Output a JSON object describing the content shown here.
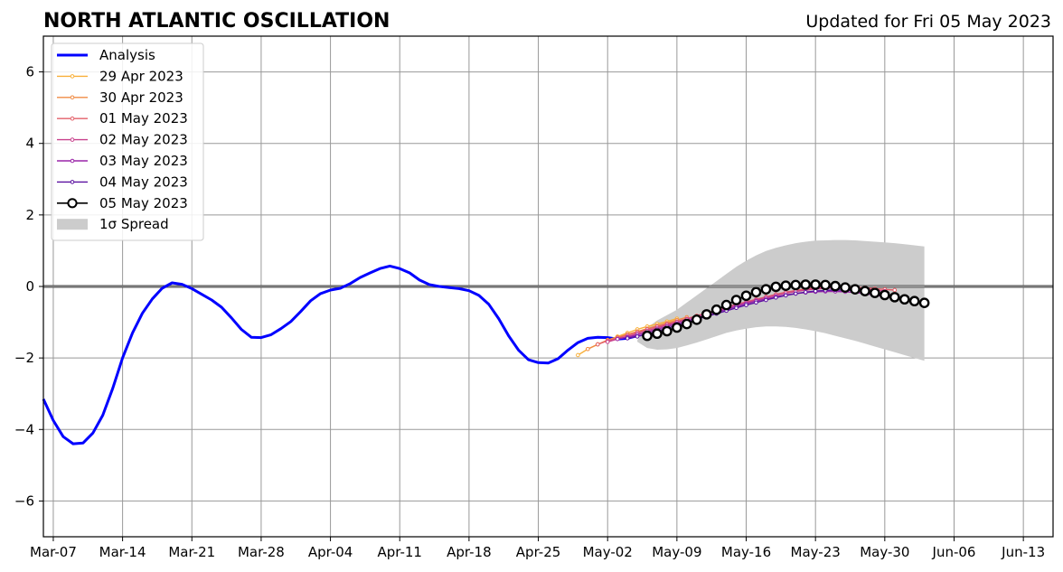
{
  "chart_data": {
    "type": "line",
    "title": "NORTH ATLANTIC OSCILLATION",
    "subtitle": "Updated for Fri 05 May 2023",
    "xlabel": "",
    "ylabel": "",
    "x_range": [
      "2023-03-06",
      "2023-06-16"
    ],
    "ylim": [
      -7,
      7
    ],
    "yticks": [
      -6,
      -4,
      -2,
      0,
      2,
      4,
      6
    ],
    "ytick_labels": [
      "−6",
      "−4",
      "−2",
      "0",
      "2",
      "4",
      "6"
    ],
    "xticks": [
      "2023-03-07",
      "2023-03-14",
      "2023-03-21",
      "2023-03-28",
      "2023-04-04",
      "2023-04-11",
      "2023-04-18",
      "2023-04-25",
      "2023-05-02",
      "2023-05-09",
      "2023-05-16",
      "2023-05-23",
      "2023-05-30",
      "2023-06-06",
      "2023-06-13"
    ],
    "xtick_labels": [
      "Mar-07",
      "Mar-14",
      "Mar-21",
      "Mar-28",
      "Apr-04",
      "Apr-11",
      "Apr-18",
      "Apr-25",
      "May-02",
      "May-09",
      "May-16",
      "May-23",
      "May-30",
      "Jun-06",
      "Jun-13"
    ],
    "grid": true,
    "legend_position": "top-left",
    "zero_line": 0,
    "series": [
      {
        "name": "Analysis",
        "kind": "analysis",
        "color": "#0000ff",
        "x": [
          "2023-03-06",
          "2023-03-07",
          "2023-03-08",
          "2023-03-09",
          "2023-03-10",
          "2023-03-11",
          "2023-03-12",
          "2023-03-13",
          "2023-03-14",
          "2023-03-15",
          "2023-03-16",
          "2023-03-17",
          "2023-03-18",
          "2023-03-19",
          "2023-03-20",
          "2023-03-21",
          "2023-03-22",
          "2023-03-23",
          "2023-03-24",
          "2023-03-25",
          "2023-03-26",
          "2023-03-27",
          "2023-03-28",
          "2023-03-29",
          "2023-03-30",
          "2023-03-31",
          "2023-04-01",
          "2023-04-02",
          "2023-04-03",
          "2023-04-04",
          "2023-04-05",
          "2023-04-06",
          "2023-04-07",
          "2023-04-08",
          "2023-04-09",
          "2023-04-10",
          "2023-04-11",
          "2023-04-12",
          "2023-04-13",
          "2023-04-14",
          "2023-04-15",
          "2023-04-16",
          "2023-04-17",
          "2023-04-18",
          "2023-04-19",
          "2023-04-20",
          "2023-04-21",
          "2023-04-22",
          "2023-04-23",
          "2023-04-24",
          "2023-04-25",
          "2023-04-26",
          "2023-04-27",
          "2023-04-28",
          "2023-04-29",
          "2023-04-30",
          "2023-05-01",
          "2023-05-02",
          "2023-05-03",
          "2023-05-04",
          "2023-05-05"
        ],
        "values": [
          -3.15,
          -3.75,
          -4.2,
          -4.4,
          -4.38,
          -4.1,
          -3.6,
          -2.85,
          -2.0,
          -1.3,
          -0.75,
          -0.35,
          -0.05,
          0.1,
          0.06,
          -0.06,
          -0.22,
          -0.38,
          -0.58,
          -0.88,
          -1.2,
          -1.42,
          -1.43,
          -1.35,
          -1.18,
          -0.98,
          -0.7,
          -0.4,
          -0.2,
          -0.1,
          -0.05,
          0.08,
          0.25,
          0.38,
          0.5,
          0.57,
          0.5,
          0.38,
          0.18,
          0.05,
          0.0,
          -0.03,
          -0.06,
          -0.12,
          -0.25,
          -0.5,
          -0.9,
          -1.38,
          -1.78,
          -2.05,
          -2.13,
          -2.14,
          -2.02,
          -1.78,
          -1.57,
          -1.45,
          -1.42,
          -1.43,
          -1.47,
          -1.45,
          -1.38
        ]
      },
      {
        "name": "29 Apr 2023",
        "kind": "forecast",
        "color": "#f8b03a",
        "x": [
          "2023-04-29",
          "2023-04-30",
          "2023-05-01",
          "2023-05-02",
          "2023-05-03",
          "2023-05-04",
          "2023-05-05",
          "2023-05-06",
          "2023-05-07",
          "2023-05-08",
          "2023-05-09"
        ],
        "values": [
          -1.92,
          -1.75,
          -1.62,
          -1.5,
          -1.4,
          -1.3,
          -1.2,
          -1.12,
          -1.05,
          -0.98,
          -0.9
        ]
      },
      {
        "name": "30 Apr 2023",
        "kind": "forecast",
        "color": "#f08c45",
        "x": [
          "2023-04-30",
          "2023-05-01",
          "2023-05-02",
          "2023-05-03",
          "2023-05-04",
          "2023-05-05",
          "2023-05-06",
          "2023-05-07",
          "2023-05-08",
          "2023-05-09",
          "2023-05-10"
        ],
        "values": [
          -1.75,
          -1.62,
          -1.5,
          -1.42,
          -1.34,
          -1.26,
          -1.18,
          -1.1,
          -1.02,
          -0.94,
          -0.86
        ]
      },
      {
        "name": "01 May 2023",
        "kind": "forecast",
        "color": "#e35f68",
        "x": [
          "2023-05-01",
          "2023-05-02",
          "2023-05-03",
          "2023-05-04",
          "2023-05-05",
          "2023-05-06",
          "2023-05-07",
          "2023-05-08",
          "2023-05-09",
          "2023-05-10",
          "2023-05-11",
          "2023-05-12",
          "2023-05-13",
          "2023-05-14",
          "2023-05-15",
          "2023-05-16",
          "2023-05-17",
          "2023-05-18",
          "2023-05-19",
          "2023-05-20",
          "2023-05-21",
          "2023-05-22",
          "2023-05-23",
          "2023-05-24",
          "2023-05-25",
          "2023-05-26",
          "2023-05-27",
          "2023-05-28",
          "2023-05-29",
          "2023-05-30",
          "2023-05-31"
        ],
        "values": [
          -1.62,
          -1.52,
          -1.44,
          -1.36,
          -1.28,
          -1.2,
          -1.12,
          -1.05,
          -0.98,
          -0.9,
          -0.82,
          -0.74,
          -0.66,
          -0.58,
          -0.5,
          -0.43,
          -0.36,
          -0.29,
          -0.22,
          -0.16,
          -0.11,
          -0.07,
          -0.04,
          -0.02,
          -0.01,
          -0.01,
          -0.02,
          -0.04,
          -0.06,
          -0.08,
          -0.1
        ]
      },
      {
        "name": "02 May 2023",
        "kind": "forecast",
        "color": "#c8408c",
        "x": [
          "2023-05-02",
          "2023-05-03",
          "2023-05-04",
          "2023-05-05",
          "2023-05-06",
          "2023-05-07",
          "2023-05-08",
          "2023-05-09",
          "2023-05-10",
          "2023-05-11",
          "2023-05-12",
          "2023-05-13",
          "2023-05-14",
          "2023-05-15",
          "2023-05-16",
          "2023-05-17",
          "2023-05-18",
          "2023-05-19",
          "2023-05-20",
          "2023-05-21",
          "2023-05-22",
          "2023-05-23",
          "2023-05-24",
          "2023-05-25",
          "2023-05-26",
          "2023-05-27",
          "2023-05-28",
          "2023-05-29",
          "2023-05-30"
        ],
        "values": [
          -1.55,
          -1.47,
          -1.4,
          -1.32,
          -1.24,
          -1.16,
          -1.08,
          -1.0,
          -0.92,
          -0.84,
          -0.76,
          -0.68,
          -0.6,
          -0.52,
          -0.45,
          -0.38,
          -0.31,
          -0.25,
          -0.19,
          -0.14,
          -0.1,
          -0.07,
          -0.05,
          -0.04,
          -0.04,
          -0.05,
          -0.07,
          -0.1,
          -0.13
        ]
      },
      {
        "name": "03 May 2023",
        "kind": "forecast",
        "color": "#9a25a8",
        "x": [
          "2023-05-03",
          "2023-05-04",
          "2023-05-05",
          "2023-05-06",
          "2023-05-07",
          "2023-05-08",
          "2023-05-09",
          "2023-05-10",
          "2023-05-11",
          "2023-05-12",
          "2023-05-13",
          "2023-05-14",
          "2023-05-15",
          "2023-05-16",
          "2023-05-17",
          "2023-05-18",
          "2023-05-19",
          "2023-05-20",
          "2023-05-21",
          "2023-05-22",
          "2023-05-23",
          "2023-05-24",
          "2023-05-25",
          "2023-05-26",
          "2023-05-27",
          "2023-05-28",
          "2023-05-29",
          "2023-05-30",
          "2023-05-31"
        ],
        "values": [
          -1.47,
          -1.42,
          -1.36,
          -1.28,
          -1.2,
          -1.12,
          -1.04,
          -0.96,
          -0.88,
          -0.8,
          -0.72,
          -0.64,
          -0.56,
          -0.48,
          -0.41,
          -0.35,
          -0.29,
          -0.24,
          -0.2,
          -0.17,
          -0.15,
          -0.14,
          -0.14,
          -0.15,
          -0.17,
          -0.2,
          -0.24,
          -0.28,
          -0.32
        ]
      },
      {
        "name": "04 May 2023",
        "kind": "forecast",
        "color": "#5a10a0",
        "x": [
          "2023-05-04",
          "2023-05-05",
          "2023-05-06",
          "2023-05-07",
          "2023-05-08",
          "2023-05-09",
          "2023-05-10",
          "2023-05-11",
          "2023-05-12",
          "2023-05-13",
          "2023-05-14",
          "2023-05-15",
          "2023-05-16",
          "2023-05-17",
          "2023-05-18",
          "2023-05-19",
          "2023-05-20",
          "2023-05-21",
          "2023-05-22",
          "2023-05-23",
          "2023-05-24",
          "2023-05-25",
          "2023-05-26",
          "2023-05-27"
        ],
        "values": [
          -1.45,
          -1.4,
          -1.33,
          -1.25,
          -1.17,
          -1.09,
          -1.0,
          -0.92,
          -0.84,
          -0.76,
          -0.68,
          -0.6,
          -0.52,
          -0.45,
          -0.38,
          -0.31,
          -0.25,
          -0.2,
          -0.16,
          -0.13,
          -0.11,
          -0.1,
          -0.1,
          -0.11
        ]
      },
      {
        "name": "05 May 2023",
        "kind": "current",
        "color": "#000000",
        "x": [
          "2023-05-06",
          "2023-05-07",
          "2023-05-08",
          "2023-05-09",
          "2023-05-10",
          "2023-05-11",
          "2023-05-12",
          "2023-05-13",
          "2023-05-14",
          "2023-05-15",
          "2023-05-16",
          "2023-05-17",
          "2023-05-18",
          "2023-05-19",
          "2023-05-20",
          "2023-05-21",
          "2023-05-22",
          "2023-05-23",
          "2023-05-24",
          "2023-05-25",
          "2023-05-26",
          "2023-05-27",
          "2023-05-28",
          "2023-05-29",
          "2023-05-30",
          "2023-05-31",
          "2023-06-01",
          "2023-06-02",
          "2023-06-03"
        ],
        "values": [
          -1.38,
          -1.32,
          -1.25,
          -1.15,
          -1.05,
          -0.93,
          -0.78,
          -0.65,
          -0.52,
          -0.38,
          -0.26,
          -0.16,
          -0.08,
          -0.01,
          0.02,
          0.04,
          0.05,
          0.05,
          0.04,
          0.01,
          -0.03,
          -0.08,
          -0.13,
          -0.18,
          -0.24,
          -0.3,
          -0.36,
          -0.41,
          -0.46
        ]
      }
    ],
    "spread": {
      "name": "1σ Spread",
      "color": "#cccccc",
      "x": [
        "2023-05-05",
        "2023-05-06",
        "2023-05-07",
        "2023-05-08",
        "2023-05-09",
        "2023-05-10",
        "2023-05-11",
        "2023-05-12",
        "2023-05-13",
        "2023-05-14",
        "2023-05-15",
        "2023-05-16",
        "2023-05-17",
        "2023-05-18",
        "2023-05-19",
        "2023-05-20",
        "2023-05-21",
        "2023-05-22",
        "2023-05-23",
        "2023-05-24",
        "2023-05-25",
        "2023-05-26",
        "2023-05-27",
        "2023-05-28",
        "2023-05-29",
        "2023-05-30",
        "2023-05-31",
        "2023-06-01",
        "2023-06-02",
        "2023-06-03"
      ],
      "upper": [
        -1.5,
        -1.15,
        -0.95,
        -0.8,
        -0.65,
        -0.45,
        -0.25,
        -0.05,
        0.15,
        0.35,
        0.55,
        0.72,
        0.87,
        0.99,
        1.08,
        1.15,
        1.21,
        1.25,
        1.28,
        1.29,
        1.3,
        1.3,
        1.29,
        1.27,
        1.25,
        1.23,
        1.21,
        1.18,
        1.15,
        1.12
      ],
      "lower": [
        -1.55,
        -1.72,
        -1.77,
        -1.76,
        -1.72,
        -1.65,
        -1.57,
        -1.48,
        -1.39,
        -1.3,
        -1.23,
        -1.18,
        -1.14,
        -1.12,
        -1.12,
        -1.13,
        -1.16,
        -1.2,
        -1.25,
        -1.31,
        -1.38,
        -1.45,
        -1.52,
        -1.6,
        -1.68,
        -1.76,
        -1.84,
        -1.92,
        -2.0,
        -2.08
      ]
    },
    "legend": [
      "Analysis",
      "29 Apr 2023",
      "30 Apr 2023",
      "01 May 2023",
      "02 May 2023",
      "03 May 2023",
      "04 May 2023",
      "05 May 2023",
      "1σ Spread"
    ],
    "colors": {
      "grid": "#999999",
      "zero_line": "#555555",
      "axes": "#000000",
      "legend_border": "#cccccc"
    }
  }
}
